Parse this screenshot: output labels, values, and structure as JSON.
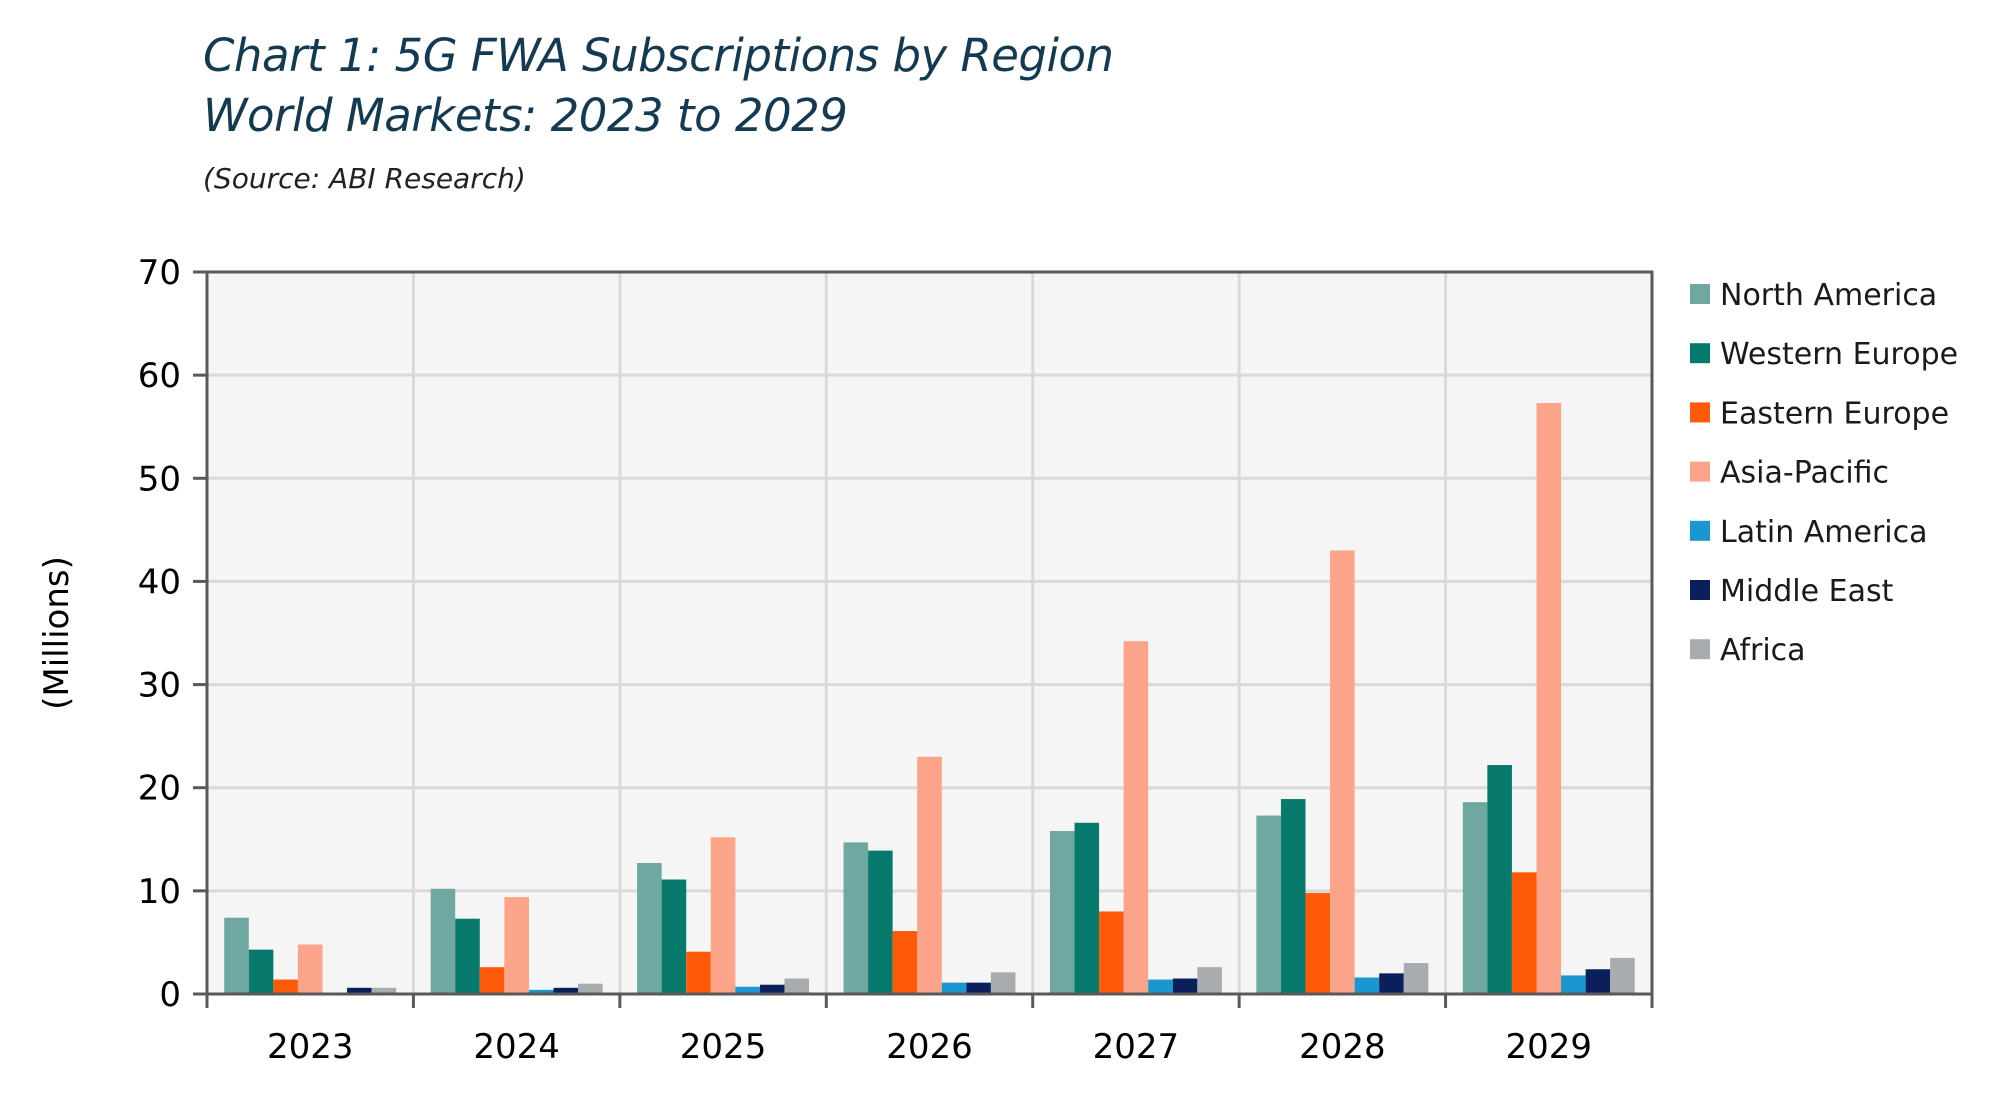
{
  "header": {
    "title_line1": "Chart 1: 5G FWA Subscriptions by Region",
    "title_line2": "World Markets: 2023 to 2029",
    "source": "(Source: ABI Research)"
  },
  "chart_data": {
    "type": "bar",
    "title": "Chart 1: 5G FWA Subscriptions by Region World Markets: 2023 to 2029",
    "xlabel": "",
    "ylabel": "(Millions)",
    "ylim": [
      0,
      70
    ],
    "yticks": [
      0,
      10,
      20,
      30,
      40,
      50,
      60,
      70
    ],
    "grid": true,
    "legend_position": "right",
    "categories": [
      "2023",
      "2024",
      "2025",
      "2026",
      "2027",
      "2028",
      "2029"
    ],
    "series": [
      {
        "name": "North America",
        "color": "#6fa8a1",
        "values": [
          7.4,
          10.2,
          12.7,
          14.7,
          15.8,
          17.3,
          18.6
        ]
      },
      {
        "name": "Western Europe",
        "color": "#077a6d",
        "values": [
          4.3,
          7.3,
          11.1,
          13.9,
          16.6,
          18.9,
          22.2
        ]
      },
      {
        "name": "Eastern Europe",
        "color": "#ff5a0a",
        "values": [
          1.4,
          2.6,
          4.1,
          6.1,
          8.0,
          9.8,
          11.8
        ]
      },
      {
        "name": "Asia-Pacific",
        "color": "#fba489",
        "values": [
          4.8,
          9.4,
          15.2,
          23.0,
          34.2,
          43.0,
          57.3
        ]
      },
      {
        "name": "Latin America",
        "color": "#1a96d0",
        "values": [
          0.1,
          0.4,
          0.7,
          1.1,
          1.4,
          1.6,
          1.8
        ]
      },
      {
        "name": "Middle East",
        "color": "#0b1f5c",
        "values": [
          0.6,
          0.6,
          0.9,
          1.1,
          1.5,
          2.0,
          2.4
        ]
      },
      {
        "name": "Africa",
        "color": "#a9acae",
        "values": [
          0.6,
          1.0,
          1.5,
          2.1,
          2.6,
          3.0,
          3.5
        ]
      }
    ]
  }
}
